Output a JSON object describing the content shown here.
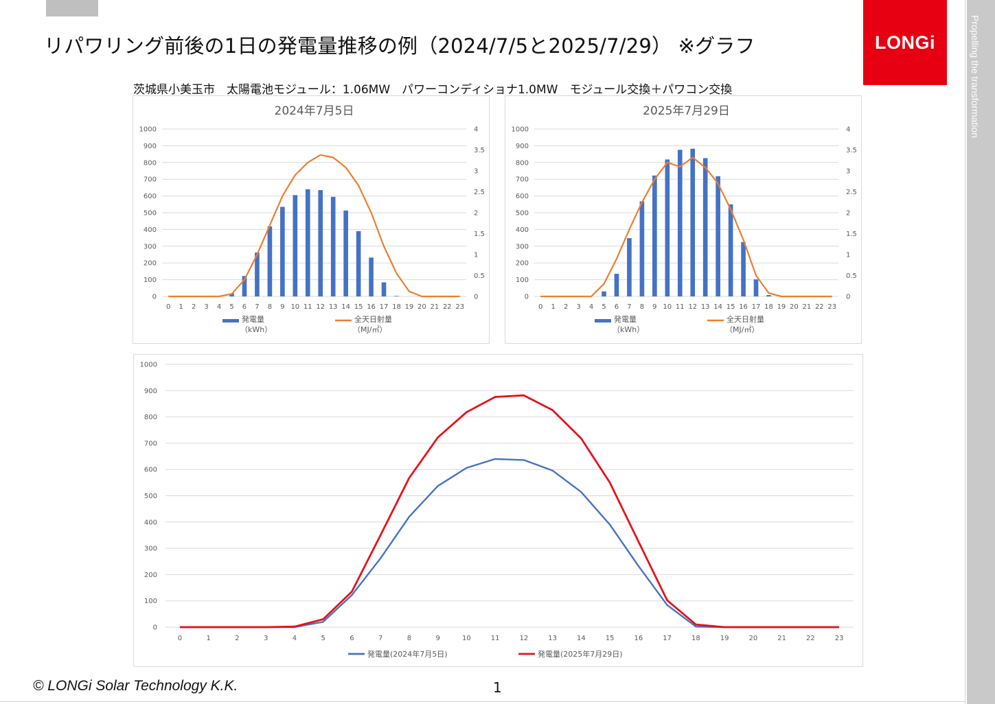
{
  "slide": {
    "title": "リパワリング前後の1日の発電量推移の例（2024/7/5と2025/7/29） ※グラフ",
    "subtitle": "茨城県小美玉市　太陽電池モジュール：1.06MW　パワーコンディショナ1.0MW　モジュール交換＋パワコン交換",
    "logo": "LONGi",
    "tagline": "Propelling the transformation",
    "copyright": "© LONGi Solar Technology K.K.",
    "page_number": "1",
    "colors": {
      "brand_red": "#e60012",
      "bar_blue": "#4472c4",
      "line_orange": "#ed7d31",
      "line_red": "#e8101a"
    }
  },
  "chart_data": [
    {
      "type": "bar",
      "title": "2024年7月5日",
      "categories": [
        "0",
        "1",
        "2",
        "3",
        "4",
        "5",
        "6",
        "7",
        "8",
        "9",
        "10",
        "11",
        "12",
        "13",
        "14",
        "15",
        "16",
        "17",
        "18",
        "19",
        "20",
        "21",
        "22",
        "23"
      ],
      "ylim": [
        0,
        1000
      ],
      "yticks": [
        "0",
        "100",
        "200",
        "300",
        "400",
        "500",
        "600",
        "700",
        "800",
        "900",
        "1000"
      ],
      "y2lim": [
        0,
        4
      ],
      "y2ticks": [
        "0",
        "0.5",
        "1",
        "1.5",
        "2",
        "2.5",
        "3",
        "3.5",
        "4"
      ],
      "grid": true,
      "legend": "bottom",
      "series": [
        {
          "name": "発電量",
          "unit": "（kWh）",
          "axis": "left",
          "kind": "bar",
          "color": "#4472c4",
          "values": [
            0,
            0,
            0,
            0,
            0,
            18,
            122,
            262,
            418,
            535,
            605,
            640,
            635,
            595,
            513,
            390,
            232,
            84,
            3,
            0,
            0,
            0,
            0,
            0
          ]
        },
        {
          "name": "全天日射量",
          "unit": "（MJ/㎡）",
          "axis": "right",
          "kind": "line",
          "color": "#ed7d31",
          "values": [
            0,
            0,
            0,
            0,
            0,
            0.06,
            0.4,
            1.0,
            1.7,
            2.4,
            2.9,
            3.2,
            3.38,
            3.32,
            3.08,
            2.65,
            2.0,
            1.2,
            0.55,
            0.12,
            0,
            0,
            0,
            0
          ]
        }
      ]
    },
    {
      "type": "bar",
      "title": "2025年7月29日",
      "categories": [
        "0",
        "1",
        "2",
        "3",
        "4",
        "5",
        "6",
        "7",
        "8",
        "9",
        "10",
        "11",
        "12",
        "13",
        "14",
        "15",
        "16",
        "17",
        "18",
        "19",
        "20",
        "21",
        "22",
        "23"
      ],
      "ylim": [
        0,
        1000
      ],
      "yticks": [
        "0",
        "100",
        "200",
        "300",
        "400",
        "500",
        "600",
        "700",
        "800",
        "900",
        "1000"
      ],
      "y2lim": [
        0,
        4
      ],
      "y2ticks": [
        "0",
        "0.5",
        "1",
        "1.5",
        "2",
        "2.5",
        "3",
        "3.5",
        "4"
      ],
      "grid": true,
      "legend": "bottom",
      "series": [
        {
          "name": "発電量",
          "unit": "（kWh）",
          "axis": "left",
          "kind": "bar",
          "color": "#4472c4",
          "values": [
            0,
            0,
            0,
            0,
            0,
            30,
            135,
            348,
            568,
            722,
            818,
            876,
            882,
            826,
            718,
            550,
            325,
            102,
            8,
            0,
            0,
            0,
            0,
            0
          ]
        },
        {
          "name": "全天日射量",
          "unit": "（MJ/㎡）",
          "axis": "right",
          "kind": "line",
          "color": "#ed7d31",
          "values": [
            0,
            0,
            0,
            0,
            0,
            0.3,
            0.9,
            1.6,
            2.25,
            2.8,
            3.2,
            3.1,
            3.32,
            3.08,
            2.7,
            2.08,
            1.35,
            0.5,
            0.08,
            0,
            0,
            0,
            0,
            0
          ]
        }
      ]
    },
    {
      "type": "line",
      "categories": [
        "0",
        "1",
        "2",
        "3",
        "4",
        "5",
        "6",
        "7",
        "8",
        "9",
        "10",
        "11",
        "12",
        "13",
        "14",
        "15",
        "16",
        "17",
        "18",
        "19",
        "20",
        "21",
        "22",
        "23"
      ],
      "ylim": [
        0,
        1000
      ],
      "yticks": [
        "0",
        "100",
        "200",
        "300",
        "400",
        "500",
        "600",
        "700",
        "800",
        "900",
        "1000"
      ],
      "grid": true,
      "legend": "bottom",
      "series": [
        {
          "name": "発電量(2024年7月5日)",
          "color": "#4472c4",
          "values": [
            0,
            0,
            0,
            0,
            0,
            20,
            122,
            262,
            420,
            537,
            606,
            640,
            636,
            596,
            514,
            390,
            232,
            84,
            2,
            0,
            0,
            0,
            0,
            0
          ]
        },
        {
          "name": "発電量(2025年7月29日)",
          "color": "#e8101a",
          "values": [
            0,
            0,
            0,
            0,
            2,
            30,
            135,
            350,
            568,
            722,
            818,
            876,
            882,
            826,
            718,
            550,
            325,
            102,
            10,
            0,
            0,
            0,
            0,
            0
          ]
        }
      ]
    }
  ]
}
